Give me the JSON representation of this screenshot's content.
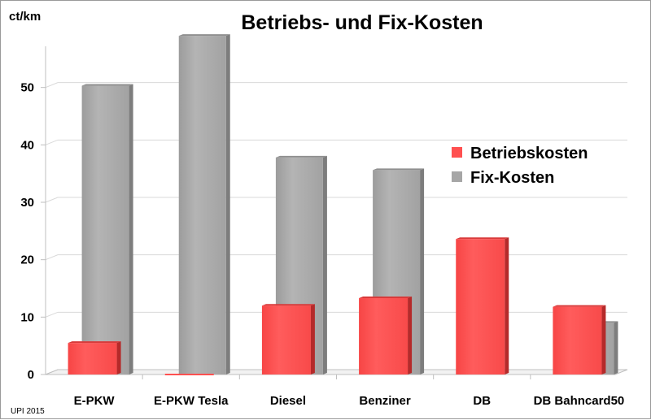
{
  "chart_data": {
    "type": "bar",
    "title": "Betriebs- und Fix-Kosten",
    "ylabel": "ct/km",
    "xlabel": "",
    "categories": [
      "E-PKW",
      "E-PKW Tesla",
      "Diesel",
      "Benziner",
      "DB",
      "DB Bahncard50"
    ],
    "series": [
      {
        "name": "Betriebskosten",
        "color": "#ff5050",
        "values": [
          5.5,
          0,
          12,
          13.3,
          23.6,
          11.8
        ]
      },
      {
        "name": "Fix-Kosten",
        "color": "#a6a6a6",
        "values": [
          50.3,
          59,
          37.8,
          35.6,
          0,
          9
        ]
      }
    ],
    "ylim": [
      0,
      60
    ],
    "yticks": [
      0,
      10,
      20,
      30,
      40,
      50
    ],
    "grid": true,
    "legend": "center-right",
    "note": "UPI 2015"
  },
  "colors": {
    "betriebskosten": "#ff5050",
    "fixkosten": "#a6a6a6",
    "grid": "#d9d9d9"
  }
}
